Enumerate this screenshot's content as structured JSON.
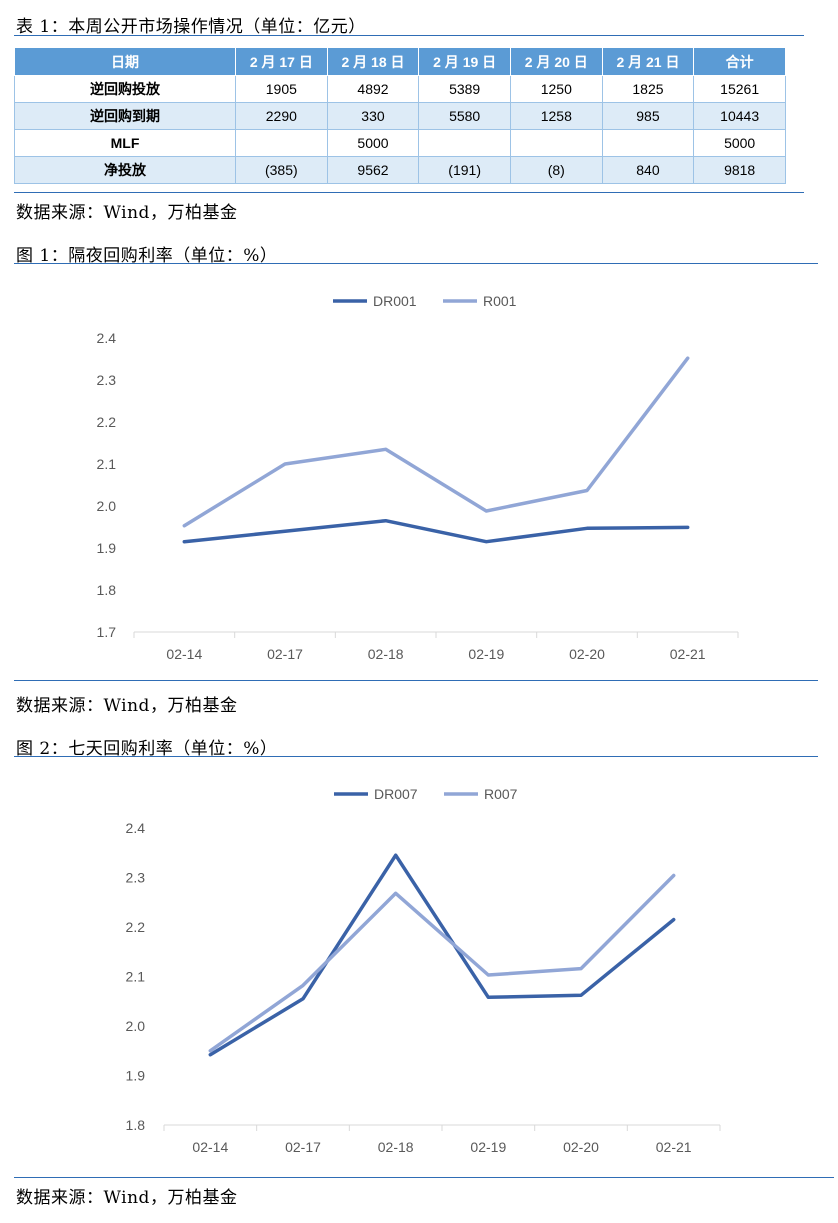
{
  "table_section": {
    "caption": "表 1：本周公开市场操作情况（单位：亿元）",
    "source": "数据来源：Wind，万柏基金",
    "headers": [
      "日期",
      "2 月 17 日",
      "2 月 18 日",
      "2 月 19 日",
      "2 月 20 日",
      "2 月 21 日",
      "合计"
    ],
    "rows": [
      {
        "label": "逆回购投放",
        "cells": [
          "1905",
          "4892",
          "5389",
          "1250",
          "1825",
          "15261"
        ]
      },
      {
        "label": "逆回购到期",
        "cells": [
          "2290",
          "330",
          "5580",
          "1258",
          "985",
          "10443"
        ]
      },
      {
        "label": "MLF",
        "cells": [
          "",
          "5000",
          "",
          "",
          "",
          "5000"
        ]
      },
      {
        "label": "净投放",
        "cells": [
          "(385)",
          "9562",
          "(191)",
          "(8)",
          "840",
          "9818"
        ]
      }
    ]
  },
  "figure1": {
    "caption": "图 1：隔夜回购利率（单位：%）",
    "source": "数据来源：Wind，万柏基金"
  },
  "figure2": {
    "caption": "图 2：七天回购利率（单位：%）",
    "source": "数据来源：Wind，万柏基金"
  },
  "colors": {
    "table_header": "#5b9bd5",
    "series_dark": "#3a62a7",
    "series_light": "#91a6d6",
    "rule": "#2f6db5"
  },
  "chart_data": [
    {
      "type": "line",
      "categories": [
        "02-14",
        "02-17",
        "02-18",
        "02-19",
        "02-20",
        "02-21"
      ],
      "series": [
        {
          "name": "DR001",
          "values": [
            1.915,
            1.94,
            1.965,
            1.915,
            1.947,
            1.949
          ]
        },
        {
          "name": "R001",
          "values": [
            1.953,
            2.1,
            2.135,
            1.988,
            2.037,
            2.352
          ]
        }
      ],
      "yticks": [
        "2.4",
        "2.3",
        "2.2",
        "2.1",
        "2.0",
        "1.9",
        "1.8",
        "1.7"
      ],
      "ylim": [
        1.7,
        2.4
      ],
      "legend": "top-center",
      "grid": false
    },
    {
      "type": "line",
      "categories": [
        "02-14",
        "02-17",
        "02-18",
        "02-19",
        "02-20",
        "02-21"
      ],
      "series": [
        {
          "name": "DR007",
          "values": [
            1.942,
            2.055,
            2.345,
            2.058,
            2.062,
            2.215
          ]
        },
        {
          "name": "R007",
          "values": [
            1.95,
            2.082,
            2.268,
            2.103,
            2.116,
            2.304
          ]
        }
      ],
      "yticks": [
        "2.4",
        "2.3",
        "2.2",
        "2.1",
        "2.0",
        "1.9",
        "1.8"
      ],
      "ylim": [
        1.8,
        2.4
      ],
      "legend": "top-center",
      "grid": false
    }
  ]
}
